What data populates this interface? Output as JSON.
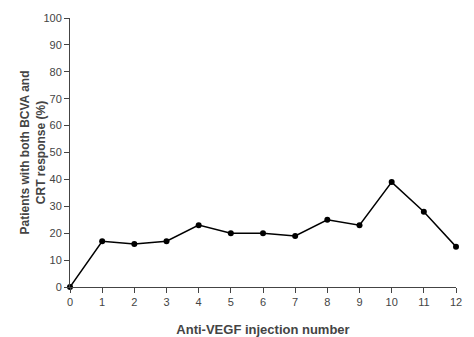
{
  "chart_data": {
    "type": "line",
    "x": [
      0,
      1,
      2,
      3,
      4,
      5,
      6,
      7,
      8,
      9,
      10,
      11,
      12
    ],
    "values": [
      0,
      17,
      16,
      17,
      23,
      20,
      20,
      19,
      25,
      23,
      39,
      28,
      15
    ],
    "xlabel": "Anti-VEGF injection number",
    "ylabel": "Patients with both BCVA and\nCRT response (%)",
    "xlim": [
      0,
      12
    ],
    "ylim": [
      0,
      100
    ],
    "xticks": [
      0,
      1,
      2,
      3,
      4,
      5,
      6,
      7,
      8,
      9,
      10,
      11,
      12
    ],
    "yticks": [
      0,
      10,
      20,
      30,
      40,
      50,
      60,
      70,
      80,
      90,
      100
    ],
    "color": "#000000",
    "marker": "circle",
    "grid": false
  }
}
